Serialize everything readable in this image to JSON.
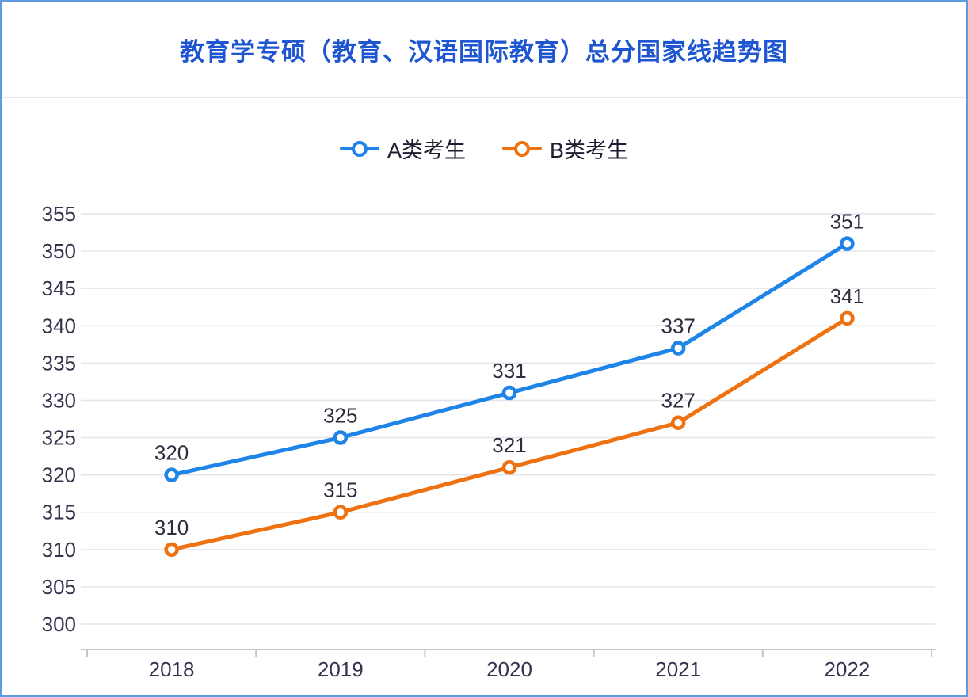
{
  "header": {
    "title": "教育学专硕（教育、汉语国际教育）总分国家线趋势图"
  },
  "colors": {
    "border": "#5f9ae0",
    "divider": "#e6e6ee",
    "title": "#1e55d0",
    "grid": "#e4e4ec",
    "axis": "#c0c4cc",
    "tick_text": "#33334d",
    "label_text": "#2d2d3f",
    "legend_text": "#1d1d30",
    "series_a": "#1e84e8",
    "series_b": "#ee7112"
  },
  "chart_data": {
    "type": "line",
    "title": "教育学专硕（教育、汉语国际教育）总分国家线趋势图",
    "categories": [
      "2018",
      "2019",
      "2020",
      "2021",
      "2022"
    ],
    "series": [
      {
        "name": "A类考生",
        "color": "#1e84e8",
        "values": [
          320,
          325,
          331,
          337,
          351
        ]
      },
      {
        "name": "B类考生",
        "color": "#ee7112",
        "values": [
          310,
          315,
          321,
          327,
          341
        ]
      }
    ],
    "xlabel": "",
    "ylabel": "",
    "ylim": [
      300,
      355
    ],
    "yticks": [
      300,
      305,
      310,
      315,
      320,
      325,
      330,
      335,
      340,
      345,
      350,
      355
    ],
    "grid": true,
    "legend_position": "top-center",
    "data_labels": true
  }
}
